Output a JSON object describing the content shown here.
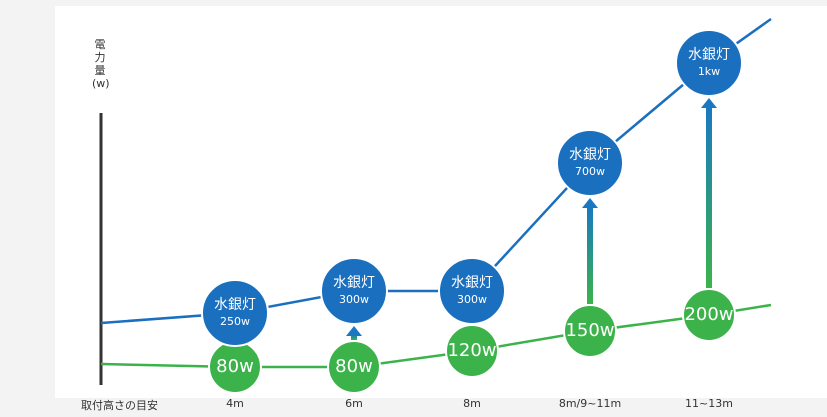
{
  "y_axis_label": "電力量(w)",
  "x_axis_label": "取付高さの目安",
  "colors": {
    "mercury": "#1a6fbf",
    "replacement": "#3cb34a",
    "arrow_top": "#1a78c2",
    "arrow_bottom": "#3cb34a"
  },
  "chart_data": {
    "type": "line",
    "categories": [
      "4m",
      "6m",
      "8m",
      "8m/9~11m",
      "11~13m"
    ],
    "series": [
      {
        "label": "水銀灯",
        "values": [
          250,
          300,
          300,
          700,
          1000
        ],
        "watt_labels": [
          "250w",
          "300w",
          "300w",
          "700w",
          "1kw"
        ]
      },
      {
        "values": [
          80,
          80,
          120,
          150,
          200
        ],
        "watt_labels": [
          "80w",
          "80w",
          "120w",
          "150w",
          "200w"
        ]
      }
    ]
  }
}
